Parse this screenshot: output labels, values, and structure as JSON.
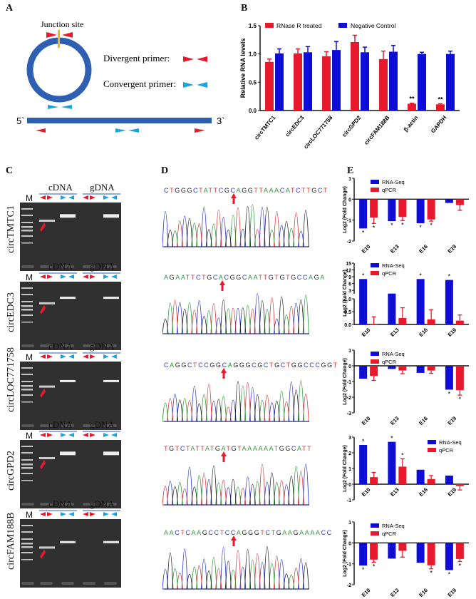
{
  "panels": {
    "A": {
      "label": "A",
      "junction_label": "Junction site",
      "divergent_label": "Divergent primer:",
      "convergent_label": "Convergent primer:",
      "five_prime": "5`",
      "three_prime": "3`",
      "colors": {
        "circle": "#2e5fb3",
        "junction": "#f0b429",
        "divergent": "#e8192c",
        "convergent": "#1aa3e0"
      }
    },
    "B": {
      "label": "B"
    },
    "C": {
      "label": "C",
      "cdna_label": "cDNA",
      "gdna_label": "gDNA",
      "marker_label": "M",
      "gels": [
        {
          "name": "circTMTC1"
        },
        {
          "name": "circEDC3"
        },
        {
          "name": "circLOC771758"
        },
        {
          "name": "circGPD2"
        },
        {
          "name": "circFAM188B"
        }
      ]
    },
    "D": {
      "label": "D",
      "sequences": [
        {
          "text": "CTGGGCTATTCGCAGGTTAAACATCTTGCT"
        },
        {
          "text": "AGAATTCTGCACGGCAATTGTGTGCCAGA"
        },
        {
          "text": "CAGGCTCCGGCAGGGCGCTGCTGGCCCGGT"
        },
        {
          "text": "TGTCTATTATGATGTAAAAAATGGCATT"
        },
        {
          "text": "AACTCAAGCCTCCAGGGTCTGAAGAAAACC"
        }
      ]
    },
    "E": {
      "label": "E"
    }
  },
  "chart_data": [
    {
      "id": "B",
      "type": "bar",
      "title": "",
      "xlabel": "",
      "ylabel": "Relative RNA levels",
      "ylim": [
        0,
        1.5
      ],
      "yticks": [
        "0.0",
        "0.5",
        "1.0",
        "1.5"
      ],
      "categories": [
        "circTMTC1",
        "circEDC3",
        "circLOC771758",
        "circGPD2",
        "circFAM188B",
        "β-actin",
        "GAPDH"
      ],
      "series": [
        {
          "name": "RNase R treated",
          "color": "#e8192c",
          "values": [
            0.86,
            1.01,
            0.96,
            1.21,
            0.91,
            0.12,
            0.11
          ],
          "errors": [
            0.05,
            0.08,
            0.08,
            0.12,
            0.14,
            0.01,
            0.01
          ]
        },
        {
          "name": "Negative Control",
          "color": "#0d0dd6",
          "values": [
            1.01,
            1.03,
            1.07,
            1.03,
            1.04,
            1.0,
            1.0
          ],
          "errors": [
            0.08,
            0.1,
            0.15,
            0.09,
            0.11,
            0.03,
            0.05
          ]
        }
      ],
      "annotations": [
        {
          "category": "β-actin",
          "series": "RNase R treated",
          "text": "**"
        },
        {
          "category": "GAPDH",
          "series": "RNase R treated",
          "text": "**"
        }
      ],
      "legend": "top"
    },
    {
      "id": "E1",
      "type": "bar",
      "ylabel": "Log2 (Fold Change)",
      "ylim": [
        -2,
        1
      ],
      "yticks": [
        "-2",
        "-1",
        "0",
        "1"
      ],
      "categories": [
        "E10",
        "E13",
        "E16",
        "E19"
      ],
      "series": [
        {
          "name": "RNA-Seq",
          "color": "#0d0dd6",
          "values": [
            -1.4,
            -1.05,
            -1.15,
            -0.18
          ],
          "errors": [
            0,
            0,
            0,
            0
          ],
          "stars": [
            true,
            true,
            true,
            false
          ]
        },
        {
          "name": "qPCR",
          "color": "#e8192c",
          "values": [
            -0.88,
            -0.85,
            -0.97,
            -0.28
          ],
          "errors": [
            0.28,
            0.17,
            0.08,
            0.25
          ],
          "stars": [
            true,
            true,
            true,
            false
          ]
        }
      ],
      "legend": "top-left"
    },
    {
      "id": "E2",
      "type": "bar",
      "ylabel": "Log2 (Fold Change)",
      "broken_axis": true,
      "ylim_lower": [
        0,
        1.0
      ],
      "ylim_upper": [
        1.5,
        15
      ],
      "yticks": [
        "0.0",
        "0.5",
        "1.0",
        "3",
        "6",
        "9",
        "12",
        "15"
      ],
      "categories": [
        "E10",
        "E13",
        "E16",
        "E19"
      ],
      "series": [
        {
          "name": "RNA-Seq",
          "color": "#0d0dd6",
          "values": [
            8.0,
            1.6,
            8.0,
            7.6
          ],
          "errors": [
            0,
            0,
            0,
            0
          ],
          "stars": [
            true,
            false,
            true,
            true
          ]
        },
        {
          "name": "qPCR",
          "color": "#e8192c",
          "values": [
            0.02,
            0.25,
            0.2,
            0.15
          ],
          "errors": [
            0.28,
            0.4,
            0.37,
            0.22
          ],
          "stars": [
            false,
            false,
            false,
            false
          ]
        }
      ],
      "legend": "top"
    },
    {
      "id": "E3",
      "type": "bar",
      "ylabel": "Log2 (Fold Change)",
      "ylim": [
        -3,
        1
      ],
      "yticks": [
        "-3",
        "-2",
        "-1",
        "0",
        "1"
      ],
      "categories": [
        "E10",
        "E13",
        "E16",
        "E19"
      ],
      "series": [
        {
          "name": "RNA-Seq",
          "color": "#0d0dd6",
          "values": [
            -0.82,
            -0.2,
            -0.45,
            -1.52
          ],
          "errors": [
            0,
            0,
            0,
            0
          ],
          "stars": [
            false,
            false,
            false,
            true
          ]
        },
        {
          "name": "qPCR",
          "color": "#e8192c",
          "values": [
            -0.65,
            -0.3,
            -0.3,
            -1.55
          ],
          "errors": [
            0.28,
            0.2,
            0.18,
            0.32
          ],
          "stars": [
            false,
            false,
            false,
            true
          ]
        }
      ],
      "legend": "top-left"
    },
    {
      "id": "E4",
      "type": "bar",
      "ylabel": "Log2 (Fold Change)",
      "ylim": [
        -1,
        3
      ],
      "yticks": [
        "-1",
        "0",
        "1",
        "2",
        "3"
      ],
      "categories": [
        "E10",
        "E13",
        "E16",
        "E19"
      ],
      "series": [
        {
          "name": "RNA-Seq",
          "color": "#0d0dd6",
          "values": [
            2.5,
            2.7,
            0.92,
            0.55
          ],
          "errors": [
            0,
            0,
            0,
            0
          ],
          "stars": [
            true,
            true,
            false,
            false
          ]
        },
        {
          "name": "qPCR",
          "color": "#e8192c",
          "values": [
            0.45,
            1.12,
            0.33,
            -0.12
          ],
          "errors": [
            0.3,
            0.5,
            0.22,
            0.25
          ],
          "stars": [
            false,
            true,
            false,
            false
          ]
        }
      ],
      "legend": "top-right"
    },
    {
      "id": "E5",
      "type": "bar",
      "ylabel": "Log2 (Fold Change)",
      "ylim": [
        -2,
        1
      ],
      "yticks": [
        "-2",
        "-1",
        "0",
        "1"
      ],
      "categories": [
        "E10",
        "E13",
        "E16",
        "E19"
      ],
      "series": [
        {
          "name": "RNA-Seq",
          "color": "#0d0dd6",
          "values": [
            -1.08,
            -0.75,
            -0.95,
            -1.3
          ],
          "errors": [
            0,
            0,
            0,
            0
          ],
          "stars": [
            true,
            false,
            false,
            true
          ]
        },
        {
          "name": "qPCR",
          "color": "#e8192c",
          "values": [
            -0.8,
            -0.38,
            -1.07,
            -0.77
          ],
          "errors": [
            0.12,
            0.3,
            0.17,
            0.12
          ],
          "stars": [
            true,
            false,
            true,
            true
          ]
        }
      ],
      "legend": "top-left"
    }
  ]
}
